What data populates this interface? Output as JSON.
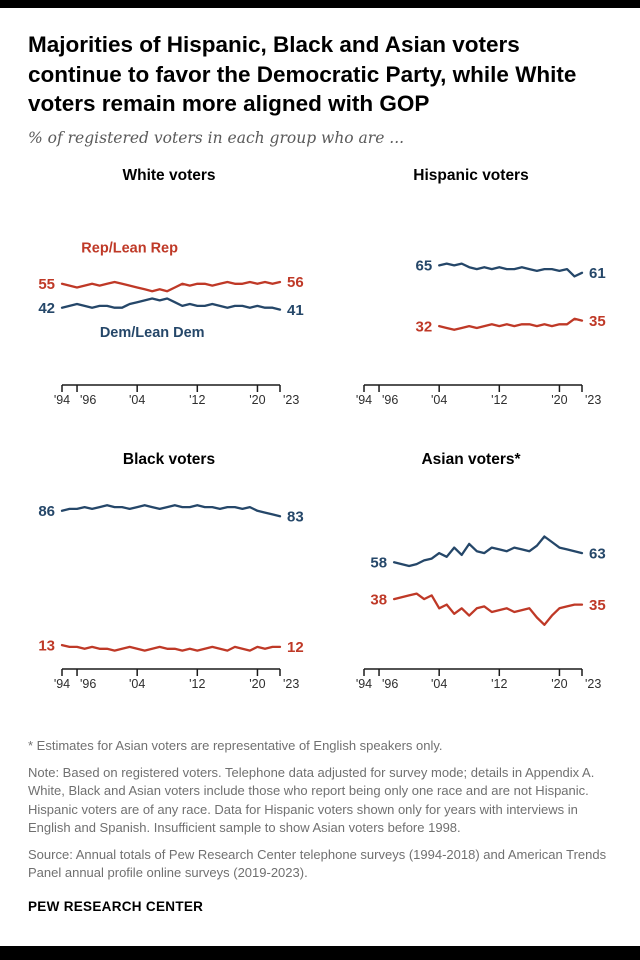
{
  "page": {
    "title": "Majorities of Hispanic, Black and Asian voters continue to favor the Democratic Party, while White voters remain more aligned with GOP",
    "subtitle": "% of registered voters in each group who are ...",
    "footnote_asterisk": "* Estimates for Asian voters are representative of English speakers only.",
    "note": "Note: Based on registered voters. Telephone data adjusted for survey mode; details in Appendix A. White, Black and Asian voters include those who report being only one race and are not Hispanic. Hispanic voters are of any race. Data for Hispanic voters shown only for years with interviews in English and Spanish. Insufficient sample to show Asian voters before 1998.",
    "source": "Source: Annual totals of Pew Research Center telephone surveys (1994-2018) and American Trends Panel annual profile online surveys (2019-2023).",
    "brand": "PEW RESEARCH CENTER"
  },
  "colors": {
    "rep": "#bf3927",
    "dem": "#254769",
    "axis": "#1a1a1a",
    "tick_label": "#2e2e2e"
  },
  "chart_data": [
    {
      "type": "line",
      "title": "White voters",
      "x_range": [
        1994,
        2023
      ],
      "y_range": [
        0,
        100
      ],
      "ticks": [
        {
          "year": 1994,
          "label": "'94"
        },
        {
          "year": 1996,
          "label": "'96",
          "side": "right"
        },
        {
          "year": 2004,
          "label": "'04"
        },
        {
          "year": 2012,
          "label": "'12"
        },
        {
          "year": 2020,
          "label": "'20"
        },
        {
          "year": 2023,
          "label": "'23",
          "side": "right"
        }
      ],
      "series": [
        {
          "name": "Rep/Lean Rep",
          "party": "rep",
          "start_year": 1994,
          "start_label": "55",
          "end_label": "56",
          "values": [
            55,
            54,
            53,
            54,
            55,
            54,
            55,
            56,
            55,
            54,
            53,
            52,
            51,
            52,
            51,
            53,
            55,
            54,
            55,
            55,
            54,
            55,
            56,
            55,
            55,
            56,
            55,
            56,
            55,
            56
          ]
        },
        {
          "name": "Dem/Lean Dem",
          "party": "dem",
          "start_year": 1994,
          "start_label": "42",
          "end_label": "41",
          "values": [
            42,
            43,
            44,
            43,
            42,
            43,
            43,
            42,
            42,
            44,
            45,
            46,
            47,
            46,
            47,
            45,
            43,
            44,
            43,
            43,
            44,
            43,
            42,
            43,
            43,
            42,
            43,
            42,
            42,
            41
          ]
        }
      ],
      "annotations": [
        {
          "text": "Rep/Lean Rep",
          "party": "rep",
          "year": 2003,
          "value": 72
        },
        {
          "text": "Dem/Lean Dem",
          "party": "dem",
          "year": 2006,
          "value": 26
        }
      ]
    },
    {
      "type": "line",
      "title": "Hispanic voters",
      "x_range": [
        1994,
        2023
      ],
      "y_range": [
        0,
        100
      ],
      "ticks": [
        {
          "year": 1994,
          "label": "'94"
        },
        {
          "year": 1996,
          "label": "'96",
          "side": "right"
        },
        {
          "year": 2004,
          "label": "'04"
        },
        {
          "year": 2012,
          "label": "'12"
        },
        {
          "year": 2020,
          "label": "'20"
        },
        {
          "year": 2023,
          "label": "'23",
          "side": "right"
        }
      ],
      "series": [
        {
          "name": "Dem/Lean Dem",
          "party": "dem",
          "start_year": 2004,
          "start_label": "65",
          "end_label": "61",
          "values": [
            65,
            66,
            65,
            66,
            64,
            63,
            64,
            63,
            64,
            63,
            63,
            64,
            63,
            62,
            63,
            63,
            62,
            63,
            59,
            61
          ]
        },
        {
          "name": "Rep/Lean Rep",
          "party": "rep",
          "start_year": 2004,
          "start_label": "32",
          "end_label": "35",
          "values": [
            32,
            31,
            30,
            31,
            32,
            31,
            32,
            33,
            32,
            33,
            32,
            33,
            33,
            32,
            33,
            32,
            33,
            33,
            36,
            35
          ]
        }
      ],
      "annotations": []
    },
    {
      "type": "line",
      "title": "Black voters",
      "x_range": [
        1994,
        2023
      ],
      "y_range": [
        0,
        100
      ],
      "ticks": [
        {
          "year": 1994,
          "label": "'94"
        },
        {
          "year": 1996,
          "label": "'96",
          "side": "right"
        },
        {
          "year": 2004,
          "label": "'04"
        },
        {
          "year": 2012,
          "label": "'12"
        },
        {
          "year": 2020,
          "label": "'20"
        },
        {
          "year": 2023,
          "label": "'23",
          "side": "right"
        }
      ],
      "series": [
        {
          "name": "Dem/Lean Dem",
          "party": "dem",
          "start_year": 1994,
          "start_label": "86",
          "end_label": "83",
          "values": [
            86,
            87,
            87,
            88,
            87,
            88,
            89,
            88,
            88,
            87,
            88,
            89,
            88,
            87,
            88,
            89,
            88,
            88,
            89,
            88,
            88,
            87,
            88,
            88,
            87,
            88,
            86,
            85,
            84,
            83
          ]
        },
        {
          "name": "Rep/Lean Rep",
          "party": "rep",
          "start_year": 1994,
          "start_label": "13",
          "end_label": "12",
          "values": [
            13,
            12,
            12,
            11,
            12,
            11,
            11,
            10,
            11,
            12,
            11,
            10,
            11,
            12,
            11,
            11,
            10,
            11,
            10,
            11,
            12,
            11,
            10,
            12,
            11,
            10,
            12,
            11,
            12,
            12
          ]
        }
      ],
      "annotations": []
    },
    {
      "type": "line",
      "title": "Asian voters*",
      "x_range": [
        1994,
        2023
      ],
      "y_range": [
        0,
        100
      ],
      "ticks": [
        {
          "year": 1994,
          "label": "'94"
        },
        {
          "year": 1996,
          "label": "'96",
          "side": "right"
        },
        {
          "year": 2004,
          "label": "'04"
        },
        {
          "year": 2012,
          "label": "'12"
        },
        {
          "year": 2020,
          "label": "'20"
        },
        {
          "year": 2023,
          "label": "'23",
          "side": "right"
        }
      ],
      "series": [
        {
          "name": "Dem/Lean Dem",
          "party": "dem",
          "start_year": 1998,
          "start_label": "58",
          "end_label": "63",
          "values": [
            58,
            57,
            56,
            57,
            59,
            60,
            63,
            61,
            66,
            62,
            68,
            64,
            63,
            66,
            65,
            64,
            66,
            65,
            64,
            67,
            72,
            69,
            66,
            65,
            64,
            63
          ]
        },
        {
          "name": "Rep/Lean Rep",
          "party": "rep",
          "start_year": 1998,
          "start_label": "38",
          "end_label": "35",
          "values": [
            38,
            39,
            40,
            41,
            38,
            40,
            33,
            35,
            30,
            33,
            29,
            33,
            34,
            31,
            32,
            33,
            31,
            32,
            33,
            28,
            24,
            29,
            33,
            34,
            35,
            35
          ]
        }
      ],
      "annotations": []
    }
  ]
}
